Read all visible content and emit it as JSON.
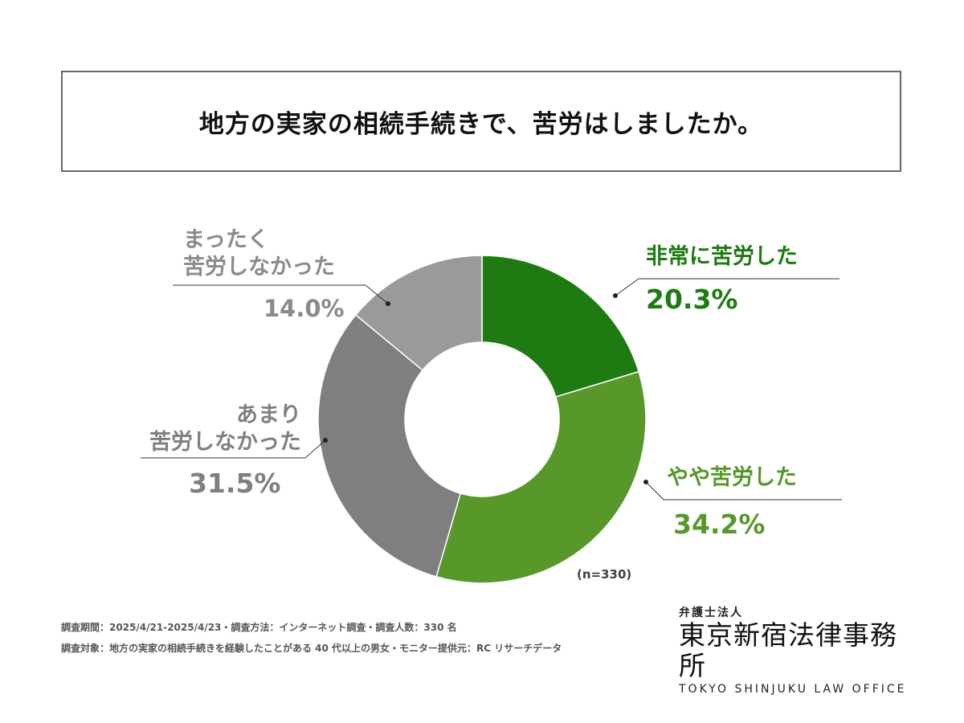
{
  "title": "地方の実家の相続手続きで、苦労はしましたか。",
  "n_label": "(n=330)",
  "footer": {
    "line1": "調査期間：2025/4/21-2025/4/23・調査方法：インターネット調査・調査人数：330 名",
    "line2": "調査対象：地方の実家の相続手続きを経験したことがある 40 代以上の男女・モニター提供元：RC リサーチデータ"
  },
  "logo": {
    "top": "弁護士法人",
    "main": "東京新宿法律事務所",
    "en": "TOKYO SHINJUKU LAW OFFICE"
  },
  "chart_data": {
    "type": "pie",
    "donut": true,
    "n": 330,
    "unit": "%",
    "slices": [
      {
        "label": "非常に苦労した",
        "value": 20.3,
        "display": "20.3%",
        "color": "#1d7b11"
      },
      {
        "label": "やや苦労した",
        "value": 34.2,
        "display": "34.2%",
        "color": "#58972a"
      },
      {
        "label": "あまり苦労しなかった",
        "label_lines": [
          "あまり",
          "苦労しなかった"
        ],
        "value": 31.5,
        "display": "31.5%",
        "color": "#7f7f7f"
      },
      {
        "label": "まったく苦労しなかった",
        "label_lines": [
          "まったく",
          "苦労しなかった"
        ],
        "value": 14.0,
        "display": "14.0%",
        "color": "#9a9a9a"
      }
    ]
  }
}
